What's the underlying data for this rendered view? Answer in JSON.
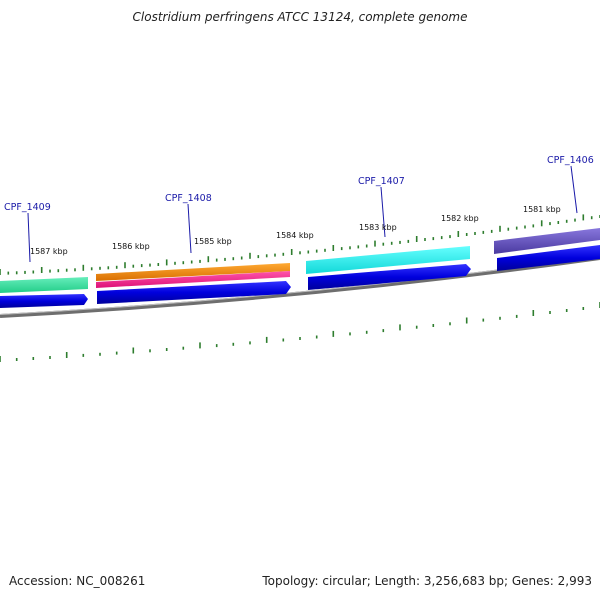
{
  "title": "Clostridium perfringens ATCC 13124, complete genome",
  "footer": {
    "accession": "Accession: NC_008261",
    "summary": "Topology: circular; Length: 3,256,683 bp; Genes: 2,993"
  },
  "kbp_labels": [
    "1587 kbp",
    "1586 kbp",
    "1585 kbp",
    "1584 kbp",
    "1583 kbp",
    "1582 kbp",
    "1581 kbp"
  ],
  "gene_labels": [
    "CPF_1409",
    "CPF_1408",
    "CPF_1407",
    "CPF_1406"
  ],
  "colors": {
    "backbone": "#7a7a7a",
    "tick": "#2e7d2e",
    "gene_label": "#1a1aa8",
    "cds_blue": "#0000dd",
    "green_feature": "#33dd99",
    "orange_feature": "#f08c1a",
    "pink_feature": "#ee2288",
    "cyan_feature": "#33eeee",
    "purple_feature": "#6655bb"
  }
}
